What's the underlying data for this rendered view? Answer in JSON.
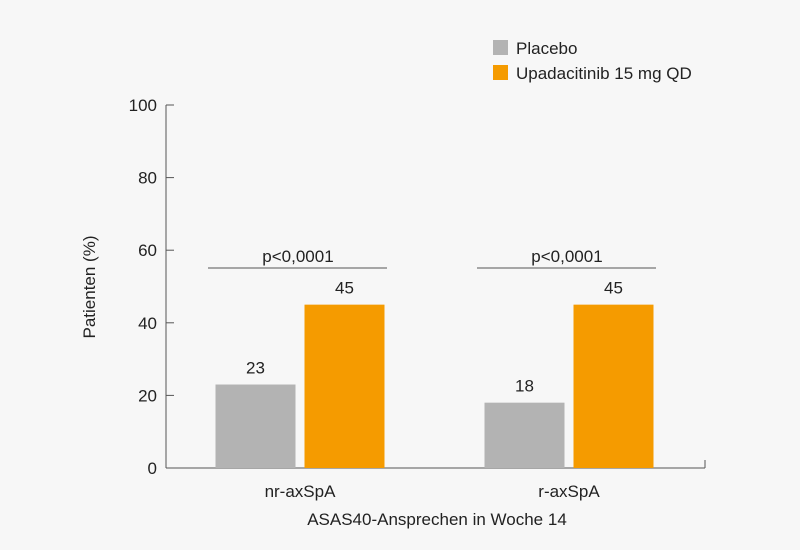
{
  "chart_data": {
    "type": "bar",
    "categories": [
      "nr-axSpA",
      "r-axSpA"
    ],
    "series": [
      {
        "name": "Placebo",
        "values": [
          23,
          18
        ],
        "color": "#b3b3b3"
      },
      {
        "name": "Upadacitinib 15 mg QD",
        "values": [
          45,
          45
        ],
        "color": "#f59b00"
      }
    ],
    "xlabel": "ASAS40-Ansprechen in Woche 14",
    "ylabel": "Patienten (%)",
    "ylim": [
      0,
      100
    ],
    "yticks": [
      0,
      20,
      40,
      60,
      80,
      100
    ],
    "grid": false,
    "legend": "top-right",
    "annotations": [
      {
        "category": "nr-axSpA",
        "text": "p<0,0001"
      },
      {
        "category": "r-axSpA",
        "text": "p<0,0001"
      }
    ],
    "axis_color": "#555555"
  }
}
